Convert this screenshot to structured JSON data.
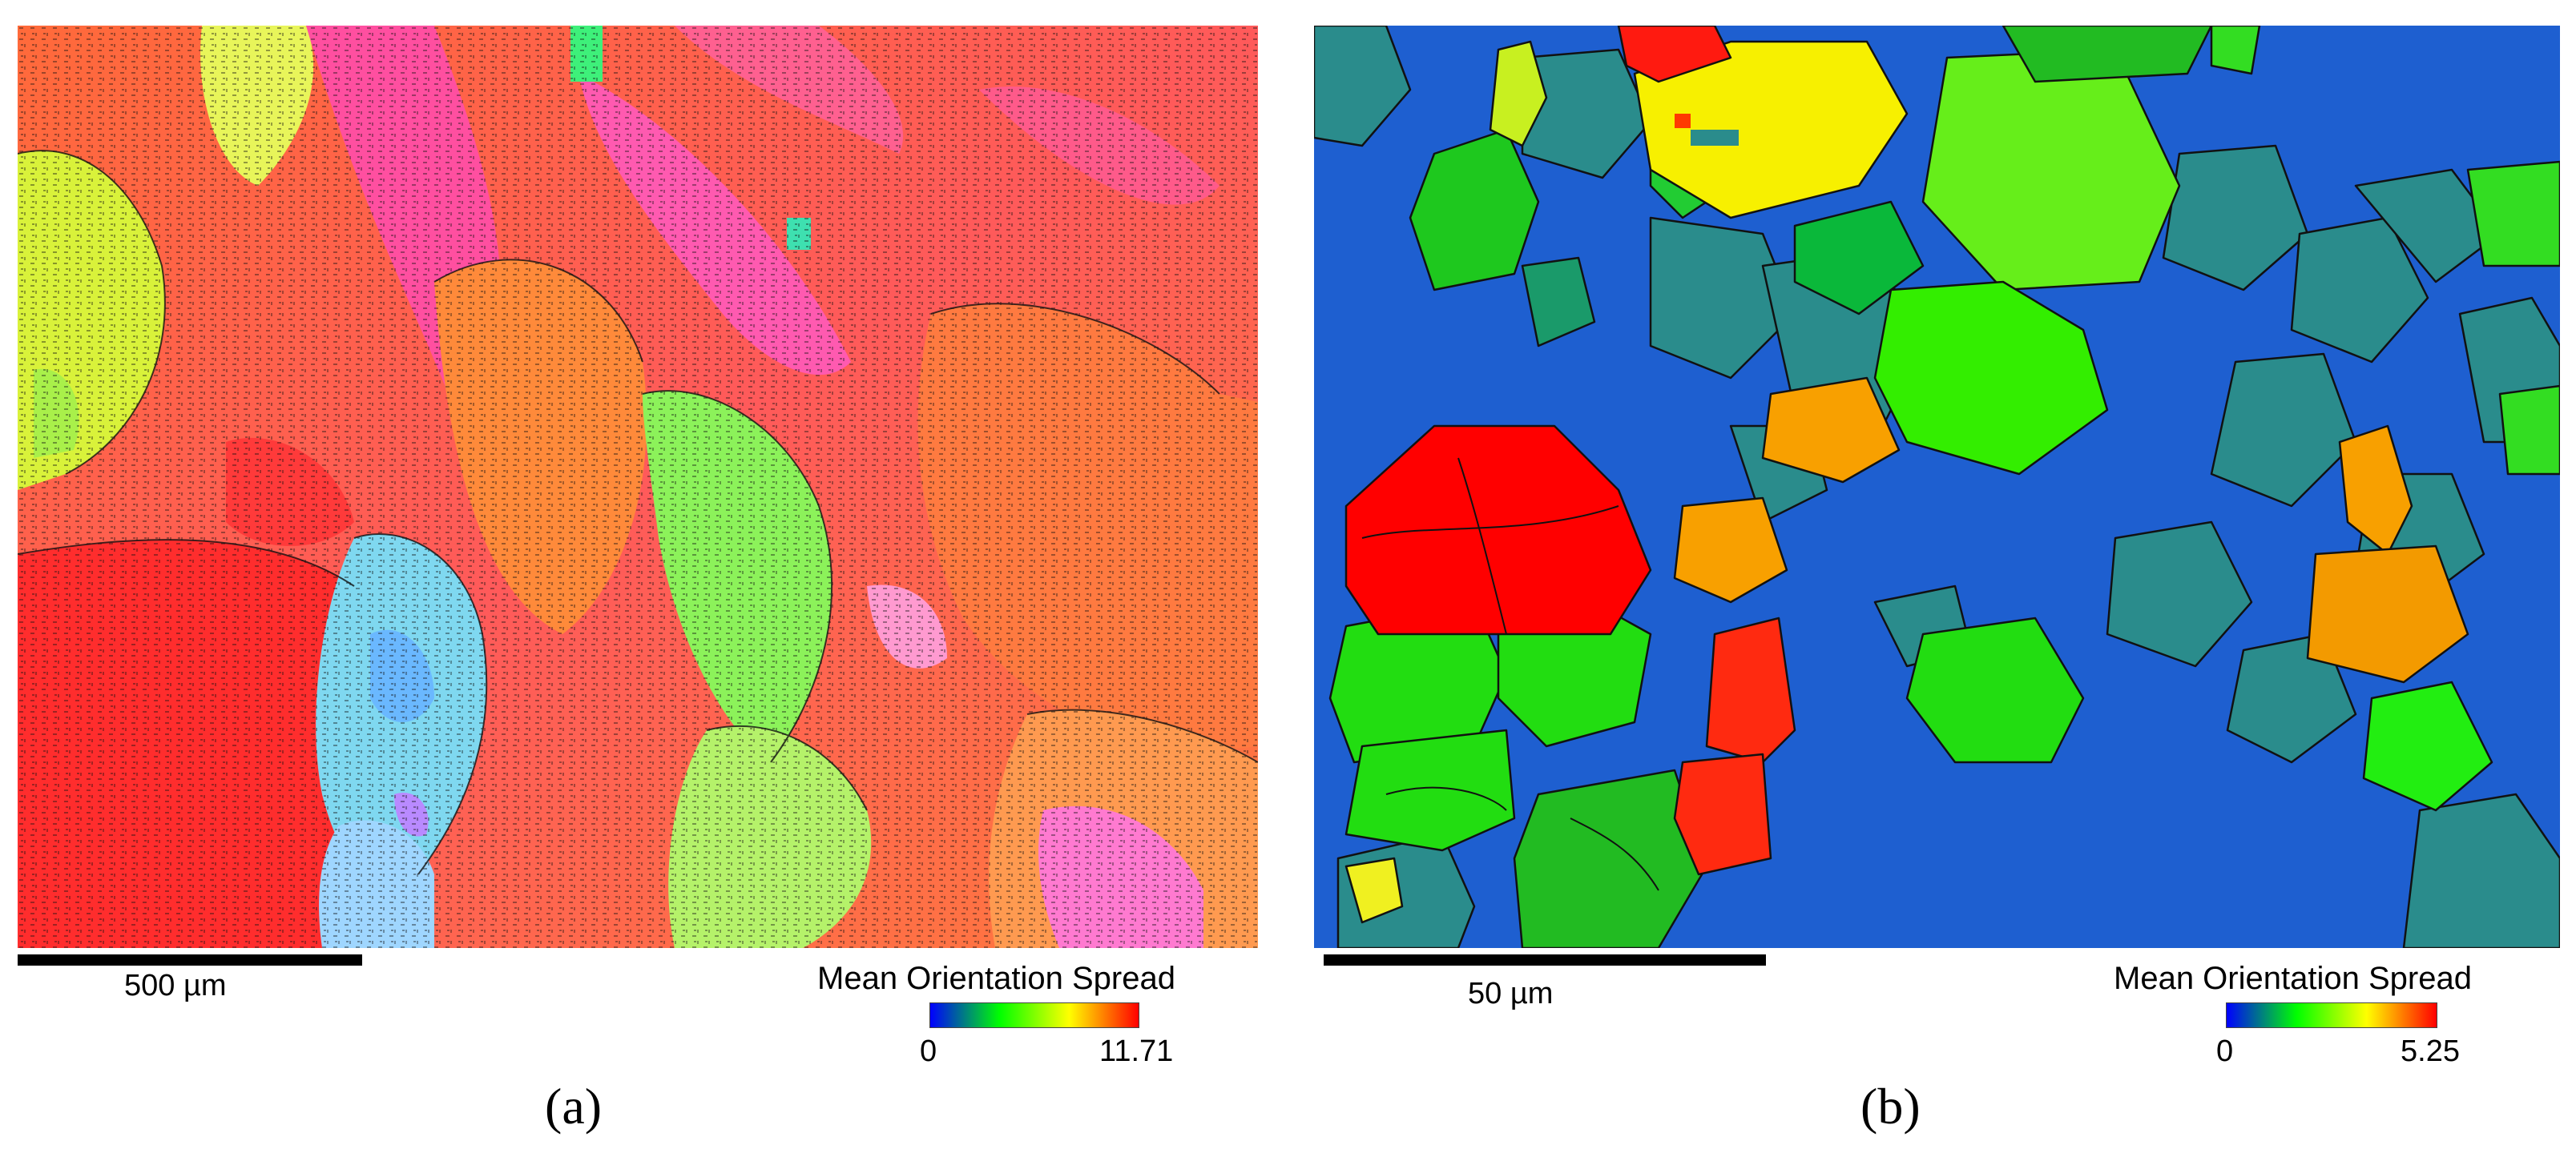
{
  "panels": [
    {
      "caption": "(a)",
      "scale_bar": "500 µm",
      "legend": {
        "title": "Mean Orientation Spread",
        "min": "0",
        "max": "11.71",
        "gradient": [
          "#0000ff",
          "#00ff00",
          "#ffff00",
          "#ff0000"
        ]
      }
    },
    {
      "caption": "(b)",
      "scale_bar": "50 µm",
      "legend": {
        "title": "Mean Orientation Spread",
        "min": "0",
        "max": "5.25",
        "gradient": [
          "#0000ff",
          "#00ff00",
          "#ffff00",
          "#ff0000"
        ]
      }
    }
  ]
}
